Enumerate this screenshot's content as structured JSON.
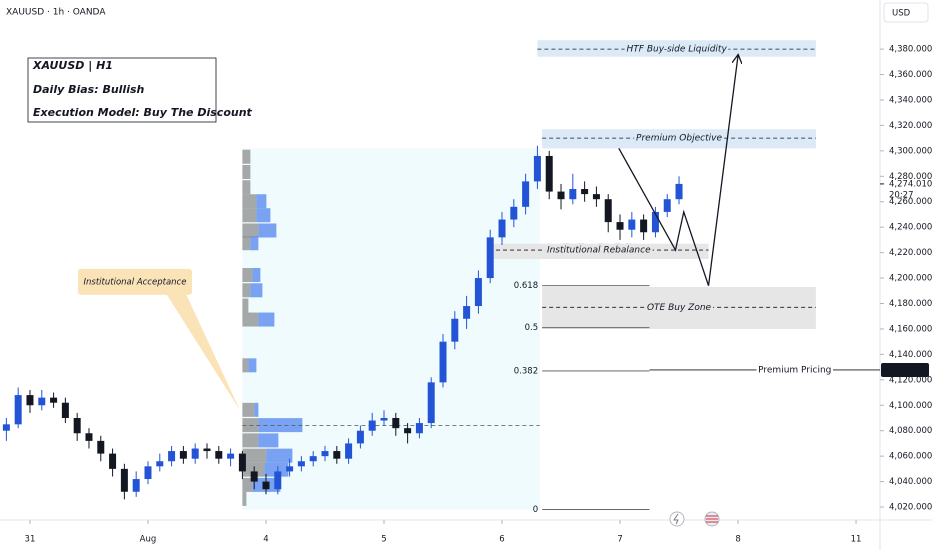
{
  "chart_data": {
    "type": "candlestick",
    "title": "XAUUSD · 1h · OANDA",
    "currency": "USD",
    "info_box": [
      "XAUUSD | H1",
      "Daily Bias: Bullish",
      "Execution Model: Buy The Discount"
    ],
    "x": [
      -0.2,
      -0.1,
      0.0,
      0.1,
      0.2,
      0.3,
      0.4,
      0.5,
      0.6,
      0.7,
      0.8,
      0.9,
      1.0,
      1.1,
      1.2,
      1.3,
      1.4,
      1.5,
      1.6,
      1.7,
      1.8,
      1.9,
      2.0,
      2.1,
      2.2,
      2.3,
      2.4,
      2.5,
      2.6,
      2.7,
      2.8,
      2.9,
      3.0,
      3.1,
      3.2,
      3.3,
      3.4,
      3.5,
      3.6,
      3.7,
      3.8,
      3.9,
      4.0,
      4.1,
      4.2,
      4.3,
      4.4,
      4.5,
      4.6,
      4.7,
      4.8,
      4.9,
      5.0,
      5.1,
      5.2,
      5.3,
      5.4,
      5.5
    ],
    "open": [
      4080,
      4085,
      4108,
      4100,
      4106,
      4102,
      4090,
      4078,
      4072,
      4062,
      4050,
      4032,
      4042,
      4052,
      4056,
      4064,
      4058,
      4066,
      4064,
      4058,
      4062,
      4048,
      4040,
      4034,
      4048,
      4052,
      4056,
      4060,
      4064,
      4058,
      4070,
      4080,
      4088,
      4090,
      4082,
      4078,
      4086,
      4118,
      4150,
      4168,
      4178,
      4200,
      4232,
      4246,
      4256,
      4276,
      4296,
      4268,
      4262,
      4270,
      4266,
      4262,
      4244,
      4238,
      4246,
      4236,
      4252,
      4262
    ],
    "high": [
      4090,
      4114,
      4112,
      4112,
      4110,
      4106,
      4094,
      4082,
      4076,
      4066,
      4054,
      4048,
      4056,
      4062,
      4068,
      4068,
      4070,
      4070,
      4068,
      4066,
      4064,
      4052,
      4046,
      4052,
      4058,
      4060,
      4064,
      4068,
      4068,
      4074,
      4084,
      4094,
      4096,
      4094,
      4086,
      4090,
      4122,
      4156,
      4174,
      4186,
      4206,
      4238,
      4252,
      4262,
      4282,
      4304,
      4300,
      4274,
      4282,
      4276,
      4272,
      4266,
      4250,
      4252,
      4250,
      4256,
      4266,
      4280
    ],
    "low": [
      4072,
      4082,
      4094,
      4096,
      4098,
      4086,
      4072,
      4066,
      4056,
      4044,
      4026,
      4028,
      4038,
      4048,
      4052,
      4054,
      4054,
      4058,
      4054,
      4052,
      4042,
      4034,
      4030,
      4030,
      4044,
      4048,
      4052,
      4056,
      4054,
      4054,
      4066,
      4076,
      4084,
      4076,
      4070,
      4074,
      4082,
      4114,
      4144,
      4160,
      4172,
      4196,
      4226,
      4240,
      4250,
      4270,
      4262,
      4254,
      4258,
      4260,
      4256,
      4236,
      4230,
      4232,
      4230,
      4232,
      4248,
      4258
    ],
    "close": [
      4085,
      4108,
      4100,
      4106,
      4102,
      4090,
      4078,
      4072,
      4062,
      4050,
      4032,
      4042,
      4052,
      4056,
      4064,
      4058,
      4066,
      4064,
      4058,
      4062,
      4048,
      4040,
      4034,
      4048,
      4052,
      4056,
      4060,
      4064,
      4058,
      4070,
      4080,
      4088,
      4090,
      4082,
      4078,
      4086,
      4118,
      4150,
      4168,
      4178,
      4200,
      4232,
      4246,
      4256,
      4276,
      4296,
      4268,
      4262,
      4270,
      4266,
      4262,
      4244,
      4238,
      4246,
      4236,
      4252,
      4262,
      4274.01
    ],
    "up_color": "#2454d6",
    "down_color": "#131722",
    "xlim": [
      -0.254,
      7.203
    ],
    "ylim": [
      4009.8,
      4418.6
    ],
    "xticks": [
      {
        "value": 0,
        "label": "31"
      },
      {
        "value": 1,
        "label": "Aug"
      },
      {
        "value": 2,
        "label": "4"
      },
      {
        "value": 3,
        "label": "5"
      },
      {
        "value": 4,
        "label": "6"
      },
      {
        "value": 5,
        "label": "7"
      },
      {
        "value": 6,
        "label": "8"
      },
      {
        "value": 7,
        "label": "11"
      }
    ],
    "yticks": [
      {
        "value": 4020,
        "label": "4,020.000"
      },
      {
        "value": 4040,
        "label": "4,040.000"
      },
      {
        "value": 4060,
        "label": "4,060.000"
      },
      {
        "value": 4080,
        "label": "4,080.000"
      },
      {
        "value": 4100,
        "label": "4,100.000"
      },
      {
        "value": 4120,
        "label": "4,120.000"
      },
      {
        "value": 4140,
        "label": "4,140.000"
      },
      {
        "value": 4160,
        "label": "4,160.000"
      },
      {
        "value": 4180,
        "label": "4,180.000"
      },
      {
        "value": 4200,
        "label": "4,200.000"
      },
      {
        "value": 4220,
        "label": "4,220.000"
      },
      {
        "value": 4240,
        "label": "4,240.000"
      },
      {
        "value": 4260,
        "label": "4,260.000"
      },
      {
        "value": 4280,
        "label": "4,280.000"
      },
      {
        "value": 4300,
        "label": "4,300.000"
      },
      {
        "value": 4320,
        "label": "4,320.000"
      },
      {
        "value": 4340,
        "label": "4,340.000"
      },
      {
        "value": 4360,
        "label": "4,360.000"
      },
      {
        "value": 4380,
        "label": "4,380.000"
      }
    ],
    "grid": false,
    "acceptance_zone": {
      "x": [
        1.8,
        4.32
      ],
      "y": [
        4018,
        4302
      ],
      "color": "#effbfd",
      "poc": 4084
    },
    "volume_profile": {
      "x": 1.8,
      "levels": [
        4295,
        4283,
        4271,
        4260,
        4249,
        4237,
        4227,
        4202,
        4190,
        4178,
        4167,
        4131,
        4096,
        4084,
        4072,
        4060,
        4049,
        4037,
        4026
      ],
      "step": 11.8,
      "gray": [
        8,
        8,
        8,
        14,
        14,
        16,
        8,
        10,
        8,
        6,
        16,
        6,
        12,
        16,
        16,
        24,
        22,
        10,
        4
      ],
      "blue": [
        0,
        0,
        0,
        10,
        14,
        18,
        8,
        8,
        12,
        0,
        16,
        8,
        4,
        44,
        20,
        26,
        24,
        28,
        0
      ]
    },
    "zones": [
      {
        "label": "HTF Buy-side Liquidity",
        "x": [
          4.3,
          6.66
        ],
        "y": [
          4374,
          4387
        ],
        "line": 4380,
        "color": "#dceaf7"
      },
      {
        "label": "Premium Objective",
        "x": [
          4.34,
          6.66
        ],
        "y": [
          4302,
          4317
        ],
        "line": 4310,
        "color": "#dceaf7"
      },
      {
        "label": "Institutional Rebalance",
        "x": [
          3.89,
          5.75
        ],
        "y": [
          4215,
          4227
        ],
        "line": 4222,
        "color": "#e6e6e6"
      },
      {
        "label": "OTE Buy Zone",
        "x": [
          4.34,
          6.66
        ],
        "y": [
          4160,
          4193
        ],
        "line": 4177,
        "color": "#e6e6e6"
      }
    ],
    "fib": {
      "x": [
        4.34,
        5.25
      ],
      "levels": [
        {
          "level": 0.618,
          "price": 4194
        },
        {
          "level": 0.5,
          "price": 4161
        },
        {
          "level": 0.382,
          "price": 4127
        },
        {
          "level": 0,
          "price": 4018
        }
      ]
    },
    "premium_pricing": {
      "label": "Premium Pricing",
      "x": 5.25,
      "price": {
        "value": 4127.749,
        "label": "4,127.749"
      }
    },
    "current_price": {
      "value": 4274.01,
      "label": "4,274.010"
    },
    "countdown": "20:27",
    "callout": {
      "label": "Institutional Acceptance",
      "x": [
        0.89,
        1.78
      ],
      "y": [
        4197,
        4096
      ]
    },
    "projection": {
      "x": [
        4.99,
        5.47,
        5.54,
        5.75,
        6.0
      ],
      "y": [
        4302,
        4222,
        4252,
        4194,
        4375
      ]
    }
  }
}
